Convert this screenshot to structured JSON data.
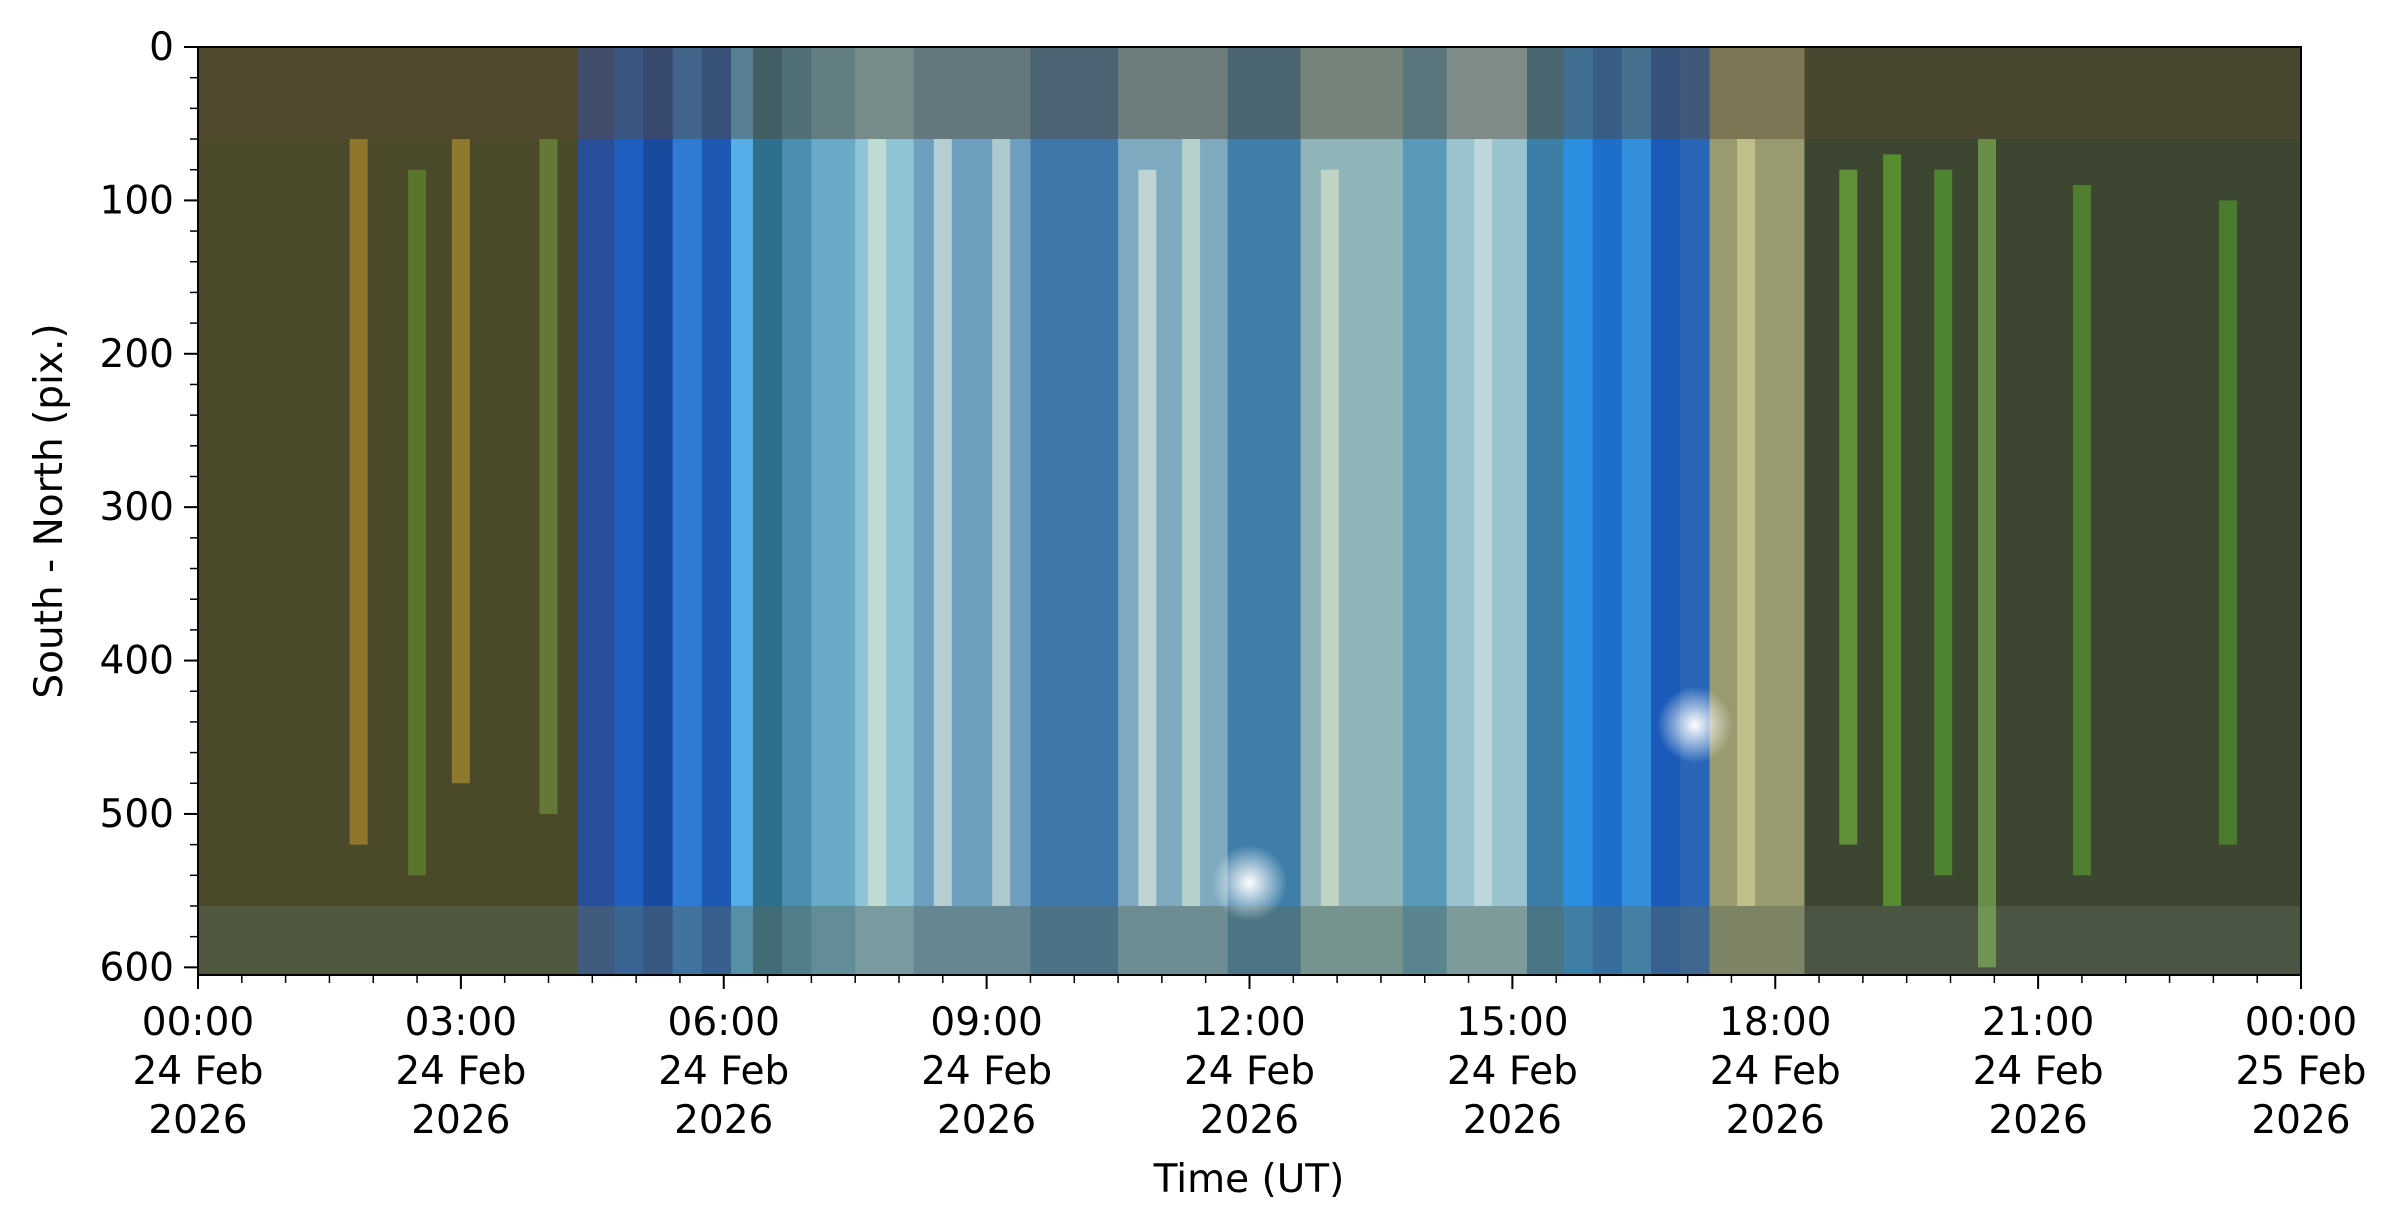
{
  "chart_data": {
    "type": "heatmap",
    "title": "",
    "xlabel": "Time (UT)",
    "ylabel": "South - North (pix.)",
    "x_range": [
      "2026-02-24T00:00",
      "2026-02-25T00:00"
    ],
    "y_range": [
      0,
      605
    ],
    "y_axis_inverted": true,
    "grid": false,
    "legend": "none",
    "x_ticks": [
      {
        "time": "2026-02-24T00:00",
        "label_lines": [
          "00:00",
          "24 Feb",
          "2026"
        ]
      },
      {
        "time": "2026-02-24T03:00",
        "label_lines": [
          "03:00",
          "24 Feb",
          "2026"
        ]
      },
      {
        "time": "2026-02-24T06:00",
        "label_lines": [
          "06:00",
          "24 Feb",
          "2026"
        ]
      },
      {
        "time": "2026-02-24T09:00",
        "label_lines": [
          "09:00",
          "24 Feb",
          "2026"
        ]
      },
      {
        "time": "2026-02-24T12:00",
        "label_lines": [
          "12:00",
          "24 Feb",
          "2026"
        ]
      },
      {
        "time": "2026-02-24T15:00",
        "label_lines": [
          "15:00",
          "24 Feb",
          "2026"
        ]
      },
      {
        "time": "2026-02-24T18:00",
        "label_lines": [
          "18:00",
          "24 Feb",
          "2026"
        ]
      },
      {
        "time": "2026-02-24T21:00",
        "label_lines": [
          "21:00",
          "24 Feb",
          "2026"
        ]
      },
      {
        "time": "2026-02-25T00:00",
        "label_lines": [
          "00:00",
          "25 Feb",
          "2026"
        ]
      }
    ],
    "x_minor_tick_minutes": 30,
    "y_ticks": [
      0,
      100,
      200,
      300,
      400,
      500,
      600
    ],
    "y_minor_tick_step": 20,
    "bands": [
      {
        "start": "2026-02-24T00:00",
        "end": "2026-02-24T04:20",
        "color": "#4a4a2a"
      },
      {
        "start": "2026-02-24T04:20",
        "end": "2026-02-24T04:45",
        "color": "#2a4f9a"
      },
      {
        "start": "2026-02-24T04:45",
        "end": "2026-02-24T05:05",
        "color": "#1f5fc0"
      },
      {
        "start": "2026-02-24T05:05",
        "end": "2026-02-24T05:25",
        "color": "#1a4a9e"
      },
      {
        "start": "2026-02-24T05:25",
        "end": "2026-02-24T05:45",
        "color": "#2f7ad4"
      },
      {
        "start": "2026-02-24T05:45",
        "end": "2026-02-24T06:05",
        "color": "#1d58b4"
      },
      {
        "start": "2026-02-24T06:05",
        "end": "2026-02-24T06:20",
        "color": "#55aee8"
      },
      {
        "start": "2026-02-24T06:20",
        "end": "2026-02-24T06:40",
        "color": "#2f6f8e"
      },
      {
        "start": "2026-02-24T06:40",
        "end": "2026-02-24T07:00",
        "color": "#4a8fb0"
      },
      {
        "start": "2026-02-24T07:00",
        "end": "2026-02-24T07:30",
        "color": "#6aaac6"
      },
      {
        "start": "2026-02-24T07:30",
        "end": "2026-02-24T08:10",
        "color": "#8fc3d6"
      },
      {
        "start": "2026-02-24T08:10",
        "end": "2026-02-24T09:30",
        "color": "#6e9fbe"
      },
      {
        "start": "2026-02-24T09:30",
        "end": "2026-02-24T10:30",
        "color": "#3f78a8"
      },
      {
        "start": "2026-02-24T10:30",
        "end": "2026-02-24T11:45",
        "color": "#7eaac0"
      },
      {
        "start": "2026-02-24T11:45",
        "end": "2026-02-24T12:35",
        "color": "#3e7ea8"
      },
      {
        "start": "2026-02-24T12:35",
        "end": "2026-02-24T13:45",
        "color": "#8fb5b8"
      },
      {
        "start": "2026-02-24T13:45",
        "end": "2026-02-24T14:15",
        "color": "#5a9ab8"
      },
      {
        "start": "2026-02-24T14:15",
        "end": "2026-02-24T15:10",
        "color": "#9ac3d0"
      },
      {
        "start": "2026-02-24T15:10",
        "end": "2026-02-24T15:35",
        "color": "#3c7fa6"
      },
      {
        "start": "2026-02-24T15:35",
        "end": "2026-02-24T15:55",
        "color": "#2a8fe0"
      },
      {
        "start": "2026-02-24T15:55",
        "end": "2026-02-24T16:15",
        "color": "#1d6fcc"
      },
      {
        "start": "2026-02-24T16:15",
        "end": "2026-02-24T16:35",
        "color": "#3590dc"
      },
      {
        "start": "2026-02-24T16:35",
        "end": "2026-02-24T16:55",
        "color": "#1a5ab8"
      },
      {
        "start": "2026-02-24T16:55",
        "end": "2026-02-24T17:15",
        "color": "#2a66b8"
      },
      {
        "start": "2026-02-24T17:15",
        "end": "2026-02-24T18:20",
        "color": "#9a9a70"
      },
      {
        "start": "2026-02-24T18:20",
        "end": "2026-02-25T00:00",
        "color": "#3c4630"
      }
    ],
    "streaks": [
      {
        "time": "2026-02-24T01:50",
        "y0": 60,
        "y1": 520,
        "color": "#c89a2a"
      },
      {
        "time": "2026-02-24T03:00",
        "y0": 60,
        "y1": 480,
        "color": "#c8a030"
      },
      {
        "time": "2026-02-24T02:30",
        "y0": 80,
        "y1": 540,
        "color": "#6a9a2a"
      },
      {
        "time": "2026-02-24T04:00",
        "y0": 60,
        "y1": 500,
        "color": "#7aa040"
      },
      {
        "time": "2026-02-24T07:45",
        "y0": 60,
        "y1": 560,
        "color": "#e8f0d0"
      },
      {
        "time": "2026-02-24T08:30",
        "y0": 60,
        "y1": 560,
        "color": "#f0f4e0"
      },
      {
        "time": "2026-02-24T09:10",
        "y0": 60,
        "y1": 560,
        "color": "#e0ecd8"
      },
      {
        "time": "2026-02-24T10:50",
        "y0": 80,
        "y1": 560,
        "color": "#f0f4e4"
      },
      {
        "time": "2026-02-24T11:20",
        "y0": 60,
        "y1": 560,
        "color": "#e6eed8"
      },
      {
        "time": "2026-02-24T12:55",
        "y0": 80,
        "y1": 560,
        "color": "#e8ecd0"
      },
      {
        "time": "2026-02-24T14:40",
        "y0": 60,
        "y1": 560,
        "color": "#dce8e8"
      },
      {
        "time": "2026-02-24T17:40",
        "y0": 60,
        "y1": 560,
        "color": "#e0dca0"
      },
      {
        "time": "2026-02-24T18:50",
        "y0": 80,
        "y1": 520,
        "color": "#7ad040"
      },
      {
        "time": "2026-02-24T19:20",
        "y0": 70,
        "y1": 560,
        "color": "#6ac830"
      },
      {
        "time": "2026-02-24T19:55",
        "y0": 80,
        "y1": 540,
        "color": "#5ab830"
      },
      {
        "time": "2026-02-24T20:25",
        "y0": 60,
        "y1": 600,
        "color": "#90c860"
      },
      {
        "time": "2026-02-24T21:30",
        "y0": 90,
        "y1": 540,
        "color": "#60b030"
      },
      {
        "time": "2026-02-24T23:10",
        "y0": 100,
        "y1": 520,
        "color": "#58a830"
      }
    ],
    "bright_spots": [
      {
        "time": "2026-02-24T12:00",
        "y": 545,
        "color": "#ffffff"
      },
      {
        "time": "2026-02-24T17:05",
        "y": 442,
        "color": "#ffffff"
      }
    ],
    "horizontal_bands": [
      {
        "y0": 0,
        "y1": 60,
        "color": "#5a4a30"
      },
      {
        "y0": 560,
        "y1": 605,
        "color": "#5a6a5a"
      }
    ]
  }
}
